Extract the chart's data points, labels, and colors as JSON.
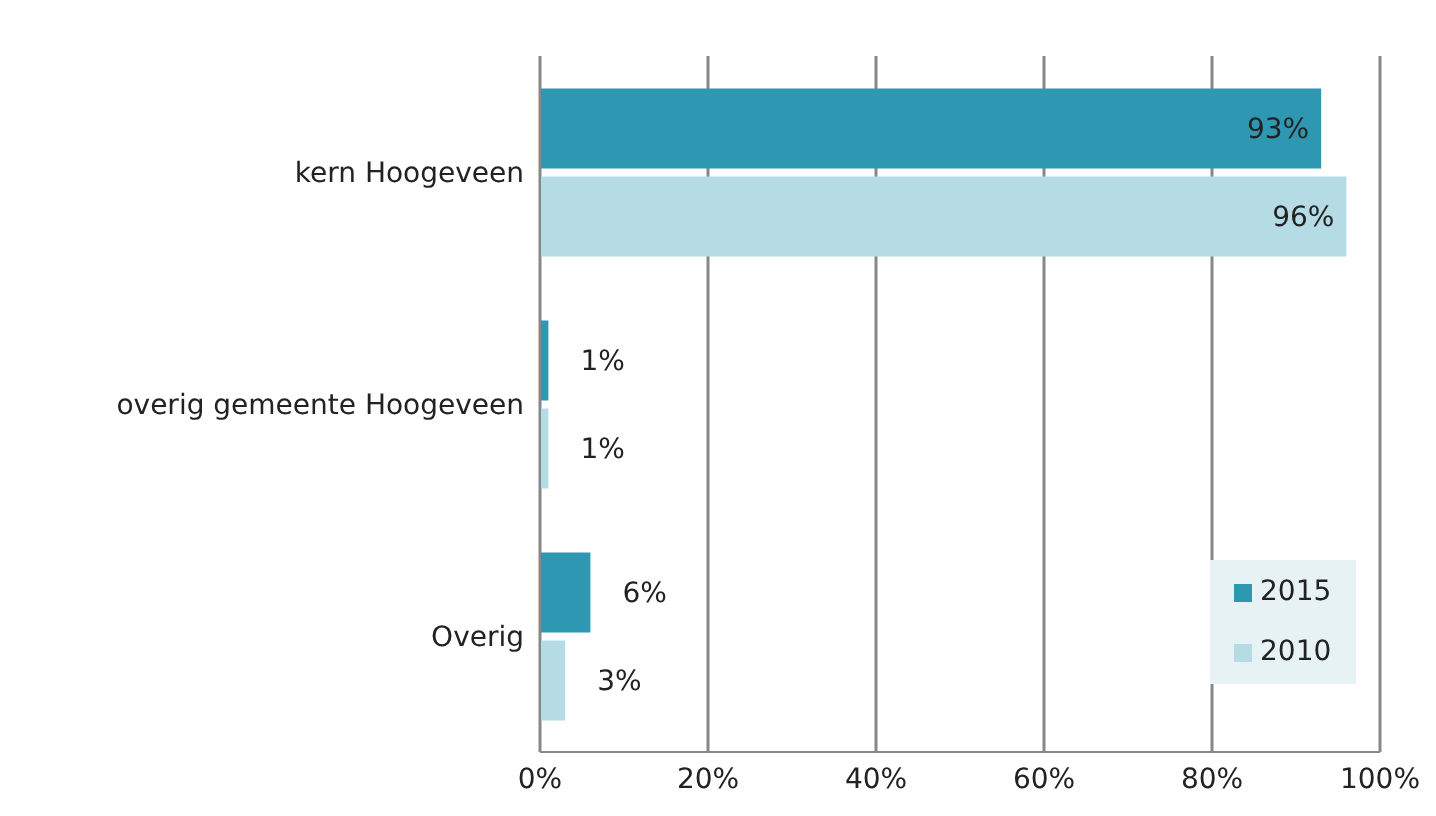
{
  "chart_data": {
    "type": "bar",
    "orientation": "horizontal",
    "categories": [
      "kern Hoogeveen",
      "overig gemeente Hoogeveen",
      "Overig"
    ],
    "series": [
      {
        "name": "2015",
        "color": "#2e98b3",
        "values": [
          93,
          1,
          6
        ]
      },
      {
        "name": "2010",
        "color": "#b5dce5",
        "values": [
          96,
          1,
          3
        ]
      }
    ],
    "xlim": [
      0,
      100
    ],
    "xticks": [
      {
        "value": 0,
        "label": "0%"
      },
      {
        "value": 20,
        "label": "20%"
      },
      {
        "value": 40,
        "label": "40%"
      },
      {
        "value": 60,
        "label": "60%"
      },
      {
        "value": 80,
        "label": "80%"
      },
      {
        "value": 100,
        "label": "100%"
      }
    ],
    "value_labels": [
      [
        "93%",
        "1%",
        "6%"
      ],
      [
        "96%",
        "1%",
        "3%"
      ]
    ],
    "grid": "x",
    "legend": "bottom right"
  }
}
